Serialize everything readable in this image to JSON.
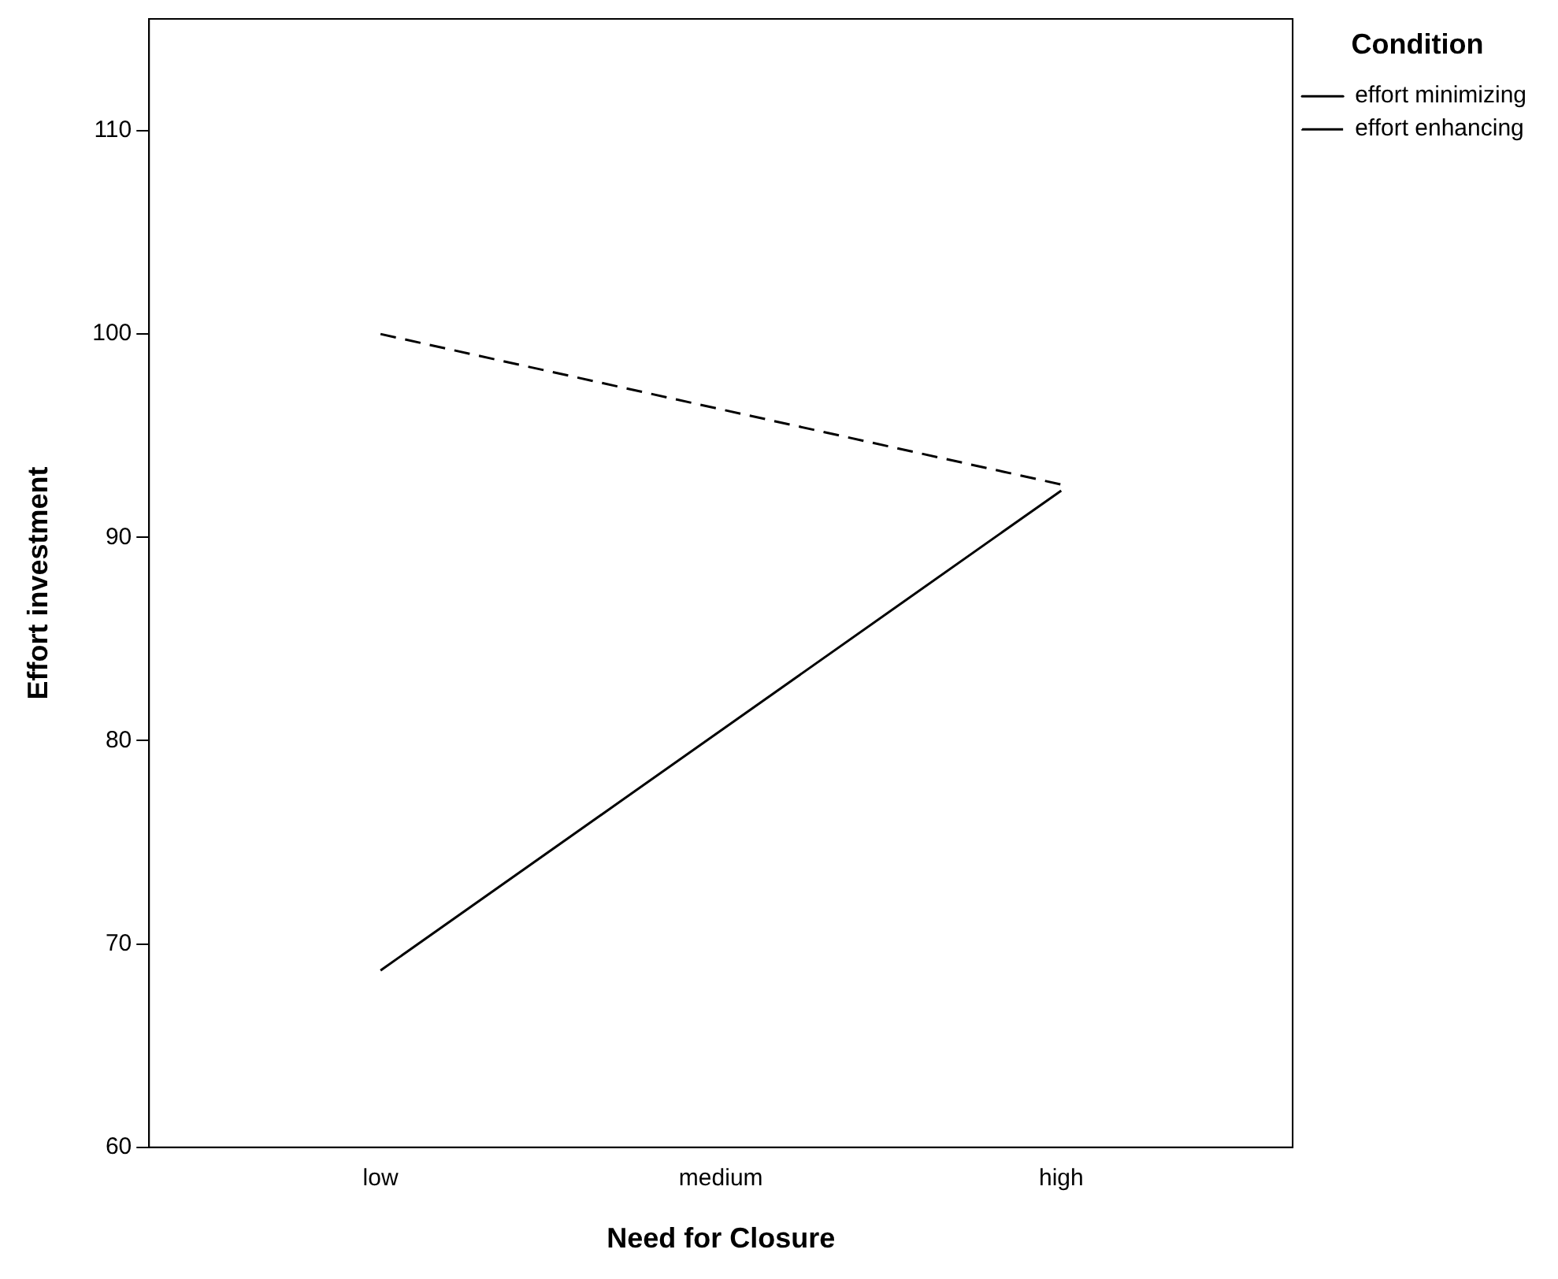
{
  "chart_data": {
    "type": "line",
    "xlabel": "Need for Closure",
    "ylabel": "Effort investment",
    "legend_title": "Condition",
    "categories": [
      "low",
      "medium",
      "high"
    ],
    "series": [
      {
        "name": "effort minimizing",
        "color": "#000000",
        "line_style": "solid",
        "values": [
          68.7,
          null,
          92.3
        ]
      },
      {
        "name": "effort enhancing",
        "color": "#000000",
        "line_style": "dashed",
        "values": [
          100,
          null,
          92.6
        ]
      }
    ],
    "ylim": [
      60,
      115.5
    ],
    "yticks": [
      60,
      70,
      80,
      90,
      100,
      110
    ],
    "grid": false,
    "legend": "top right",
    "marker": "none"
  }
}
